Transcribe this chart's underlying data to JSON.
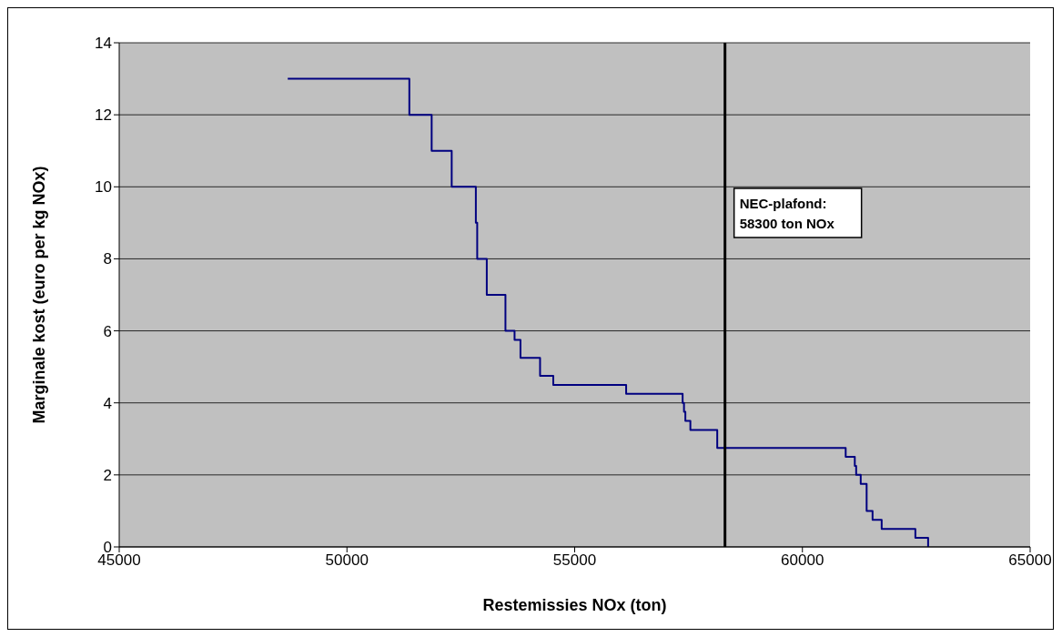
{
  "chart_data": {
    "type": "step",
    "xlabel": "Restemissies NOx (ton)",
    "ylabel": "Marginale kost (euro per kg NOx)",
    "xlim": [
      45000,
      65000
    ],
    "xticks": [
      45000,
      50000,
      55000,
      60000,
      65000
    ],
    "ylim": [
      0,
      14
    ],
    "yticks": [
      0,
      2,
      4,
      6,
      8,
      10,
      12,
      14
    ],
    "grid": "y",
    "legend": false,
    "x": [
      48700,
      51370,
      51860,
      52300,
      52830,
      52860,
      53070,
      53480,
      53480,
      53480,
      53680,
      53810,
      53810,
      54240,
      54240,
      54530,
      56130,
      57370,
      57400,
      57430,
      57540,
      58130,
      58130,
      60950,
      61150,
      61180,
      61280,
      61410,
      61540,
      61740,
      62480,
      62760
    ],
    "series": [
      {
        "color": "#000080",
        "values": [
          13,
          12,
          11,
          10,
          9,
          8,
          7,
          6.75,
          6.5,
          6,
          5.75,
          5.5,
          5.25,
          5,
          4.75,
          4.5,
          4.25,
          4,
          3.75,
          3.5,
          3.25,
          3,
          2.75,
          2.5,
          2.25,
          2,
          1.75,
          1,
          0.75,
          0.5,
          0.25,
          0
        ]
      }
    ],
    "ref_lines": [
      {
        "axis": "x",
        "value": 58300,
        "label": "NEC-plafond:\n58300 ton NOx",
        "color": "#000000"
      }
    ]
  }
}
